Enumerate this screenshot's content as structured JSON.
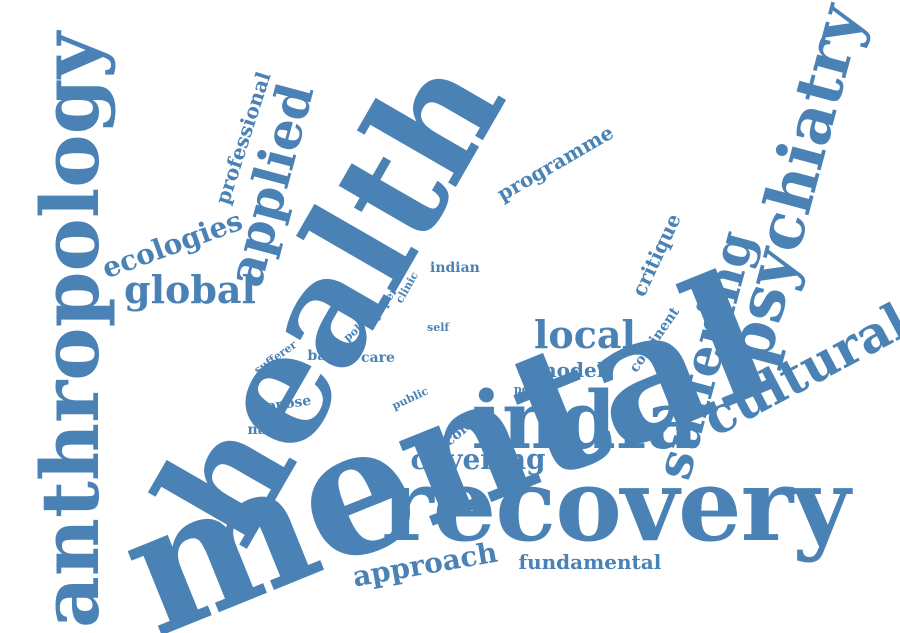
{
  "theme": {
    "word_color": "#4a82b5",
    "background": "#ffffff"
  },
  "words": {
    "mental": "mental",
    "health": "health",
    "recovery": "recovery",
    "anthropology": "anthropology",
    "india": "india",
    "psychiatry": "psychiatry",
    "suffering": "suffering",
    "cultural": "cultural",
    "applied": "applied",
    "global": "global",
    "local": "local",
    "ecologies": "ecologies",
    "professional": "professional",
    "programme": "programme",
    "critique": "critique",
    "indian": "indian",
    "covering": "covering",
    "approach": "approach",
    "fundamental": "fundamental",
    "model": "model",
    "propose": "propose",
    "national": "national",
    "based": "based",
    "care": "care",
    "sufferer": "sufferer",
    "policy": "policy",
    "paper": "paper",
    "clinic": "clinic",
    "self": "self",
    "continent": "continent",
    "person": "person",
    "public": "public",
    "ecology": "ecology"
  }
}
